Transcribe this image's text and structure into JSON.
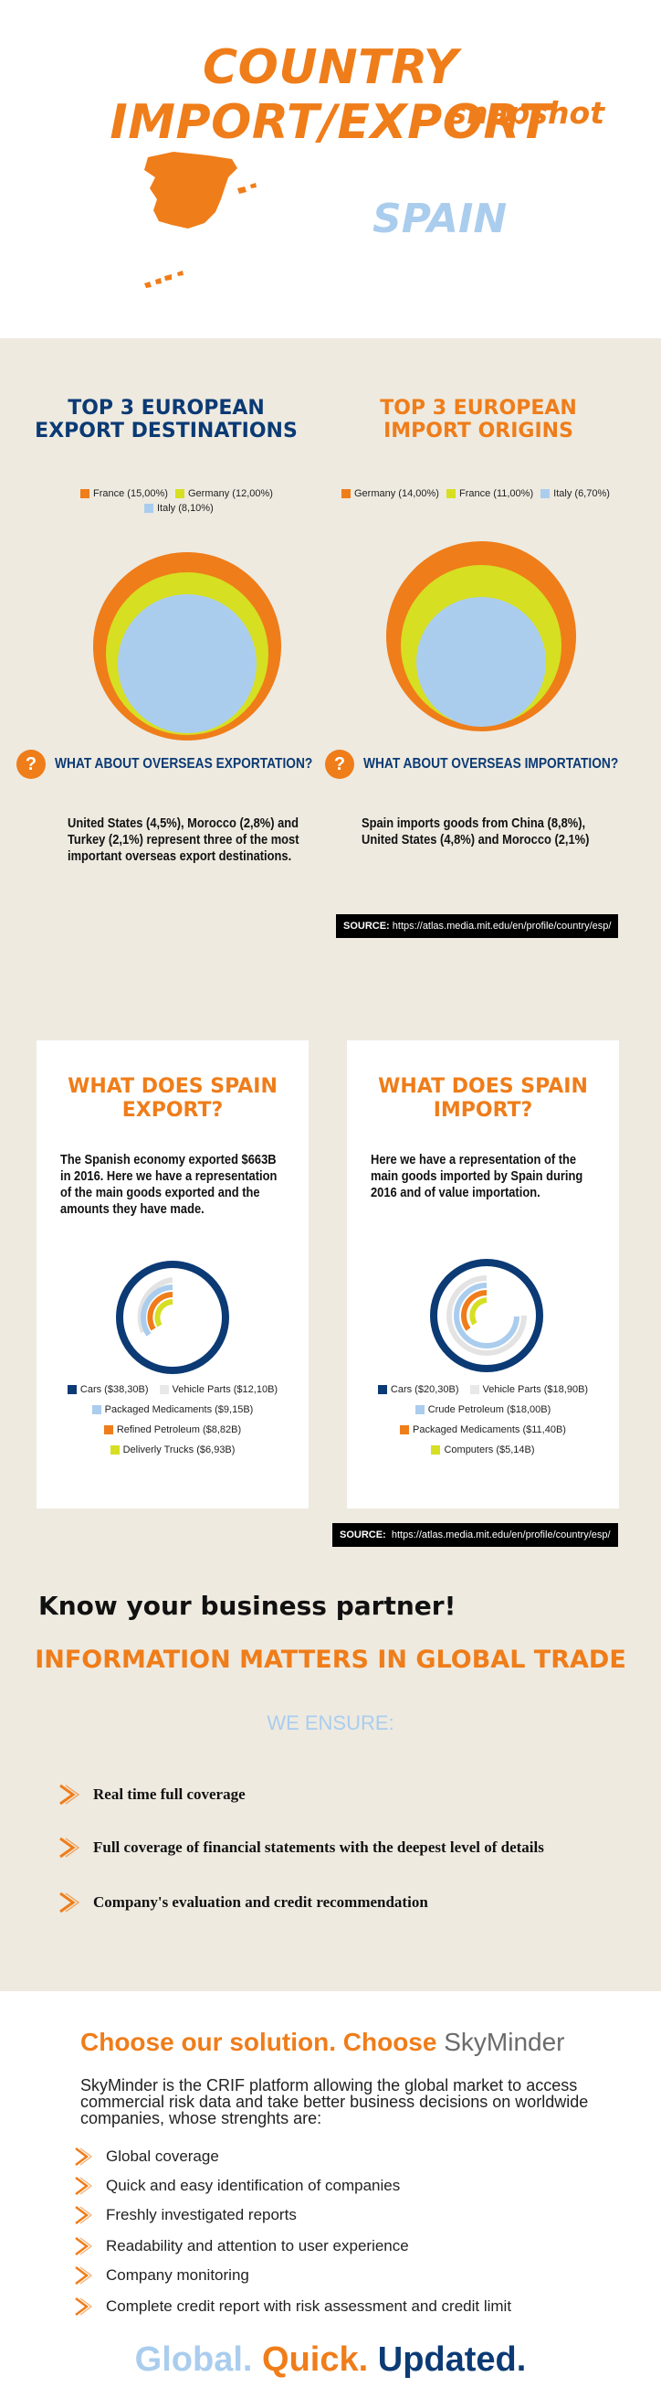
{
  "header": {
    "title": "COUNTRY IMPORT/EXPORT",
    "subtitle": "snapshot",
    "country": "SPAIN"
  },
  "exports_section": {
    "title_line1": "TOP 3 EUROPEAN",
    "title_line2": "EXPORT DESTINATIONS",
    "legend": [
      {
        "label": "France (15,00%)",
        "color": "#ef7d1a"
      },
      {
        "label": "Germany (12,00%)",
        "color": "#d6df22"
      },
      {
        "label": "Italy (8,10%)",
        "color": "#aacdee"
      }
    ],
    "question": "WHAT ABOUT OVERSEAS EXPORTATION?",
    "text": "United States (4,5%), Morocco (2,8%) and Turkey (2,1%) represent three of the most important overseas export destinations."
  },
  "imports_section": {
    "title_line1": "TOP 3 EUROPEAN",
    "title_line2": "IMPORT ORIGINS",
    "legend": [
      {
        "label": "Germany (14,00%)",
        "color": "#ef7d1a"
      },
      {
        "label": "France (11,00%)",
        "color": "#d6df22"
      },
      {
        "label": "Italy (6,70%)",
        "color": "#aacdee"
      }
    ],
    "question": "WHAT ABOUT OVERSEAS IMPORTATION?",
    "text": "Spain imports goods from China (8,8%), United States (4,8%) and Morocco (2,1%)"
  },
  "source1": {
    "label": "SOURCE:",
    "url": "https://atlas.media.mit.edu/en/profile/country/esp/"
  },
  "export_card": {
    "title_line1": "WHAT DOES SPAIN",
    "title_line2": "EXPORT?",
    "text": "The Spanish economy exported $663B in 2016. Here we have a representation of the main goods exported and the amounts they have made.",
    "legend": [
      {
        "label": "Cars ($38,30B)",
        "color": "#0b3a74"
      },
      {
        "label": "Vehicle Parts ($12,10B)",
        "color": "#e8e8e8"
      },
      {
        "label": "Packaged Medicaments ($9,15B)",
        "color": "#aacdee"
      },
      {
        "label": "Refined Petroleum ($8,82B)",
        "color": "#ef7d1a"
      },
      {
        "label": "Deliverly Trucks ($6,93B)",
        "color": "#d6df22"
      }
    ]
  },
  "import_card": {
    "title_line1": "WHAT DOES SPAIN",
    "title_line2": "IMPORT?",
    "text": "Here we have a representation of the main goods imported by Spain during 2016 and of value importation.",
    "legend": [
      {
        "label": "Cars ($20,30B)",
        "color": "#0b3a74"
      },
      {
        "label": "Vehicle Parts ($18,90B)",
        "color": "#e8e8e8"
      },
      {
        "label": "Crude Petroleum ($18,00B)",
        "color": "#aacdee"
      },
      {
        "label": "Packaged Medicaments ($11,40B)",
        "color": "#ef7d1a"
      },
      {
        "label": "Computers ($5,14B)",
        "color": "#d6df22"
      }
    ]
  },
  "source2": {
    "label": "SOURCE:",
    "url": "https://atlas.media.mit.edu/en/profile/country/esp/"
  },
  "partner": {
    "heading": "Know your business partner!",
    "subheading": "INFORMATION MATTERS IN GLOBAL TRADE",
    "ensure": "WE ENSURE:",
    "items": [
      "Real time full coverage",
      "Full coverage of financial statements with the deepest level of details",
      "Company's evaluation and credit recommendation"
    ]
  },
  "solution": {
    "choose": "Choose our solution. Choose ",
    "brand": "SkyMinder",
    "description": "SkyMinder is the CRIF platform allowing the global market to access commercial risk data and take better business decisions on worldwide companies, whose strenghts are:",
    "items": [
      "Global coverage",
      "Quick and easy identification of companies",
      "Freshly investigated reports",
      "Readability and attention to user experience",
      "Company monitoring",
      "Complete credit report with risk assessment and credit limit"
    ]
  },
  "tagline": {
    "word1": "Global.",
    "word2": "Quick.",
    "word3": "Updated."
  },
  "colors": {
    "orange": "#ef7d1a",
    "navy": "#0b3a74",
    "lime": "#d6df22",
    "lightblue": "#aacdee",
    "beige": "#eeeae0"
  },
  "chart_data": [
    {
      "type": "pie",
      "categories": [
        "France (15,00%)",
        "Germany (12,00%)",
        "Italy (8,10%)"
      ],
      "values": [
        15.0,
        12.0,
        8.1
      ]
    },
    {
      "type": "pie",
      "categories": [
        "Germany (14,00%)",
        "France (11,00%)",
        "Italy (6,70%)"
      ],
      "values": [
        14.0,
        11.0,
        6.7
      ]
    },
    {
      "type": "bar",
      "categories": [
        "Cars ($38,30B)",
        "Vehicle Parts ($12,10B)",
        "Packaged Medicaments ($9,15B)",
        "Refined Petroleum ($8,82B)",
        "Deliverly Trucks ($6,93B)"
      ],
      "values": [
        38.3,
        12.1,
        9.15,
        8.82,
        6.93
      ]
    },
    {
      "type": "bar",
      "categories": [
        "Cars ($20,30B)",
        "Vehicle Parts ($18,90B)",
        "Crude Petroleum ($18,00B)",
        "Packaged Medicaments ($11,40B)",
        "Computers ($5,14B)"
      ],
      "values": [
        20.3,
        18.9,
        18.0,
        11.4,
        5.14
      ]
    }
  ]
}
